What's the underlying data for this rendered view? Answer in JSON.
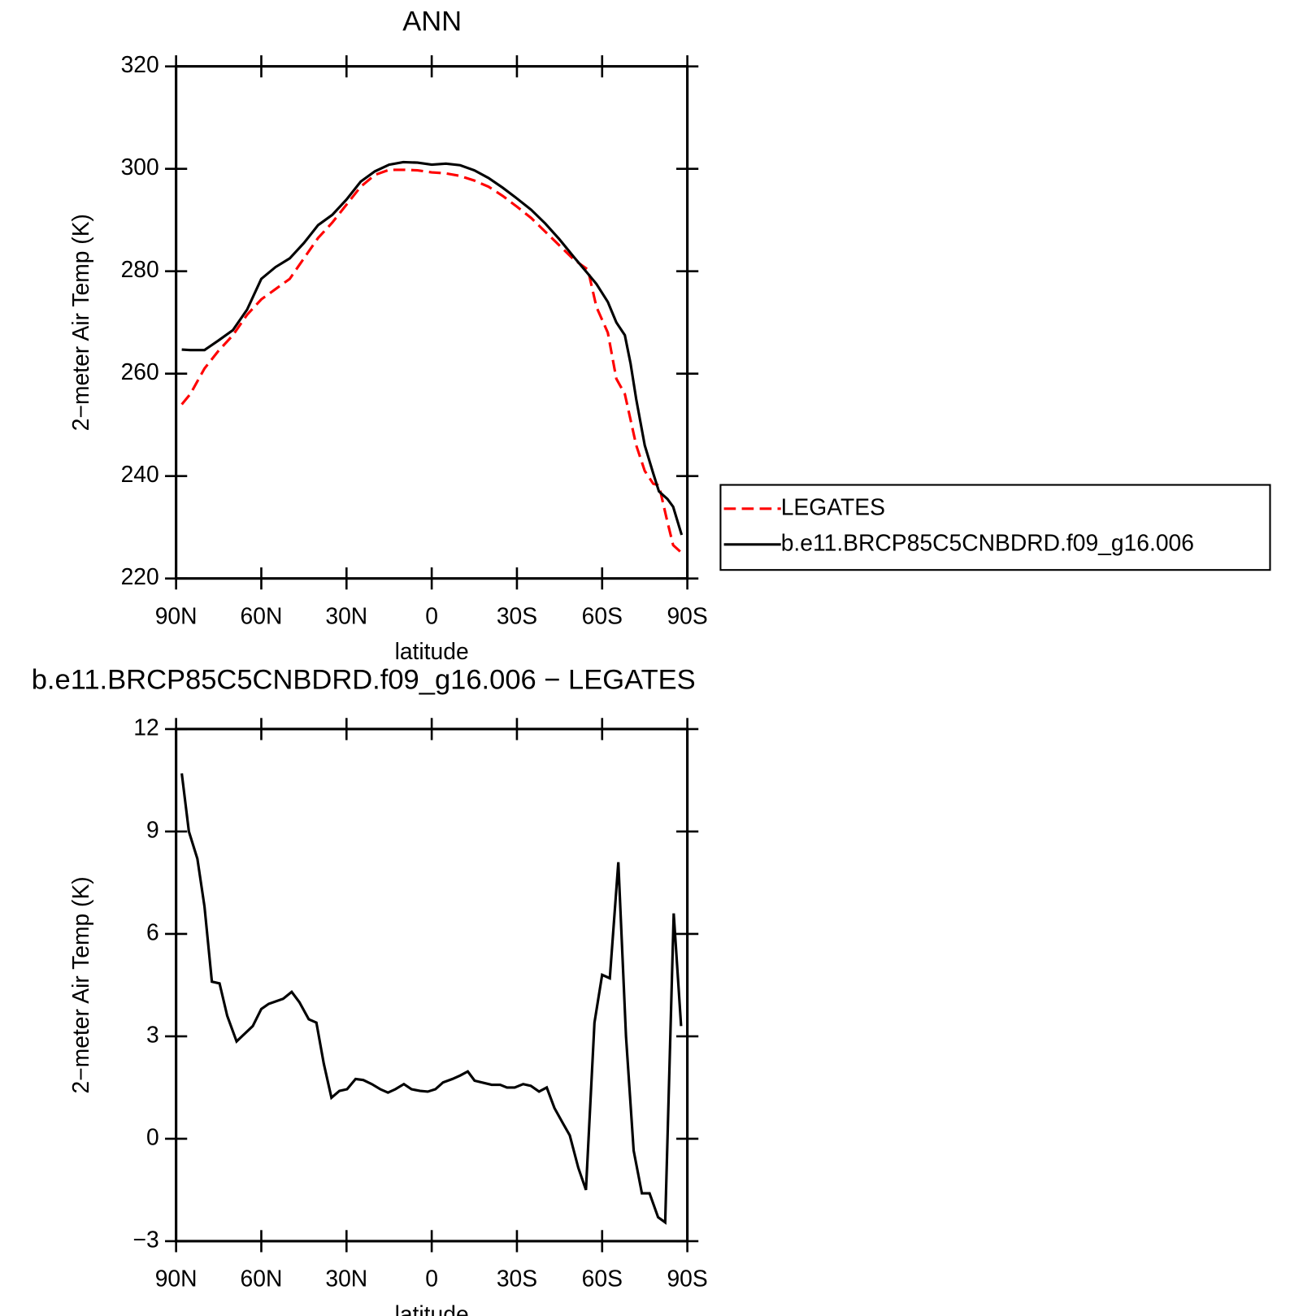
{
  "chart_data": [
    {
      "type": "line",
      "title": "ANN",
      "xlabel": "latitude",
      "ylabel": "2−meter Air Temp (K)",
      "xlim": [
        90,
        -90
      ],
      "xticks": [
        {
          "value": 90,
          "label": "90N"
        },
        {
          "value": 60,
          "label": "60N"
        },
        {
          "value": 30,
          "label": "30N"
        },
        0,
        {
          "value": -30,
          "label": "30S"
        },
        {
          "value": -60,
          "label": "60S"
        },
        {
          "value": -90,
          "label": "90S"
        }
      ],
      "ylim": [
        220,
        320
      ],
      "yticks": [
        220,
        240,
        260,
        280,
        300,
        320
      ],
      "x": [
        88,
        85,
        80,
        75,
        70,
        65,
        60,
        55,
        50,
        45,
        40,
        35,
        30,
        25,
        20,
        15,
        10,
        5,
        0,
        -5,
        -10,
        -15,
        -20,
        -25,
        -30,
        -35,
        -40,
        -45,
        -50,
        -55,
        -58,
        -62,
        -65,
        -68,
        -70,
        -72,
        -75,
        -78,
        -80,
        -83,
        -85,
        -88
      ],
      "series": [
        {
          "name": "LEGATES",
          "color": "#ff0000",
          "style": "dashed",
          "values": [
            254,
            256,
            261,
            264.5,
            267.5,
            271.5,
            274.5,
            276.5,
            278.5,
            282.5,
            286.5,
            289.5,
            293,
            296.5,
            298.8,
            299.8,
            299.8,
            299.7,
            299.3,
            299.1,
            298.6,
            297.7,
            296.5,
            294.7,
            292.6,
            290.4,
            287.7,
            285,
            282.3,
            280.3,
            273,
            268,
            259,
            256,
            251,
            246,
            241,
            238.5,
            238.2,
            231,
            226.5,
            225
          ]
        },
        {
          "name": "b.e11.BRCP85C5CNBDRD.f09_g16.006",
          "color": "#000000",
          "style": "solid",
          "values": [
            264.7,
            264.6,
            264.6,
            266.5,
            268.5,
            272.5,
            278.5,
            280.8,
            282.5,
            285.5,
            289,
            291,
            294,
            297.5,
            299.5,
            300.8,
            301.3,
            301.2,
            300.8,
            301,
            300.7,
            299.7,
            298.2,
            296.3,
            294.2,
            292,
            289.3,
            286.2,
            282.8,
            279.5,
            277.5,
            274,
            270,
            267.5,
            262,
            255,
            246,
            240.5,
            237,
            235.5,
            234,
            228.5
          ]
        }
      ]
    },
    {
      "type": "line",
      "title": "b.e11.BRCP85C5CNBDRD.f09_g16.006 − LEGATES",
      "xlabel": "latitude",
      "ylabel": "2−meter Air Temp (K)",
      "xlim": [
        90,
        -90
      ],
      "xticks": [
        {
          "value": 90,
          "label": "90N"
        },
        {
          "value": 60,
          "label": "60N"
        },
        {
          "value": 30,
          "label": "30N"
        },
        0,
        {
          "value": -30,
          "label": "30S"
        },
        {
          "value": -60,
          "label": "60S"
        },
        {
          "value": -90,
          "label": "90S"
        }
      ],
      "ylim": [
        -3,
        12
      ],
      "yticks": [
        {
          "value": -3,
          "label": "−3"
        },
        0,
        3,
        6,
        9,
        12
      ],
      "color": "#000000",
      "x": [
        88,
        85.5,
        82.5,
        80,
        77.4,
        74.7,
        72,
        68.7,
        63,
        60,
        57.4,
        52.3,
        49.3,
        46.6,
        43.3,
        40.6,
        38,
        35.3,
        32.5,
        29.8,
        26.8,
        24.1,
        21.1,
        18.1,
        15.4,
        12.8,
        9.8,
        7.1,
        4.1,
        1.4,
        -1.3,
        -4,
        -7.3,
        -10,
        -12.7,
        -15.1,
        -21.1,
        -24.1,
        -26.5,
        -29.2,
        -32.2,
        -34.9,
        -37.8,
        -40.5,
        -43.2,
        -46.2,
        -48.6,
        -51.6,
        -54.3,
        -57.3,
        -60,
        -62.7,
        -65.7,
        -68.4,
        -71.1,
        -74,
        -76.7,
        -79.7,
        -82.2,
        -85.2,
        -87.8
      ],
      "values": [
        10.7,
        9,
        8.2,
        6.8,
        4.6,
        4.55,
        3.6,
        2.85,
        3.3,
        3.8,
        3.95,
        4.1,
        4.3,
        4,
        3.5,
        3.4,
        2.2,
        1.2,
        1.4,
        1.45,
        1.75,
        1.72,
        1.6,
        1.45,
        1.35,
        1.45,
        1.6,
        1.45,
        1.4,
        1.38,
        1.45,
        1.65,
        1.75,
        1.85,
        1.97,
        1.7,
        1.58,
        1.58,
        1.5,
        1.5,
        1.6,
        1.55,
        1.38,
        1.5,
        0.9,
        0.45,
        0.1,
        -0.85,
        -1.5,
        3.4,
        4.8,
        4.7,
        8.1,
        3,
        -0.35,
        -1.6,
        -1.6,
        -2.3,
        -2.45,
        6.6,
        3.3
      ]
    }
  ]
}
